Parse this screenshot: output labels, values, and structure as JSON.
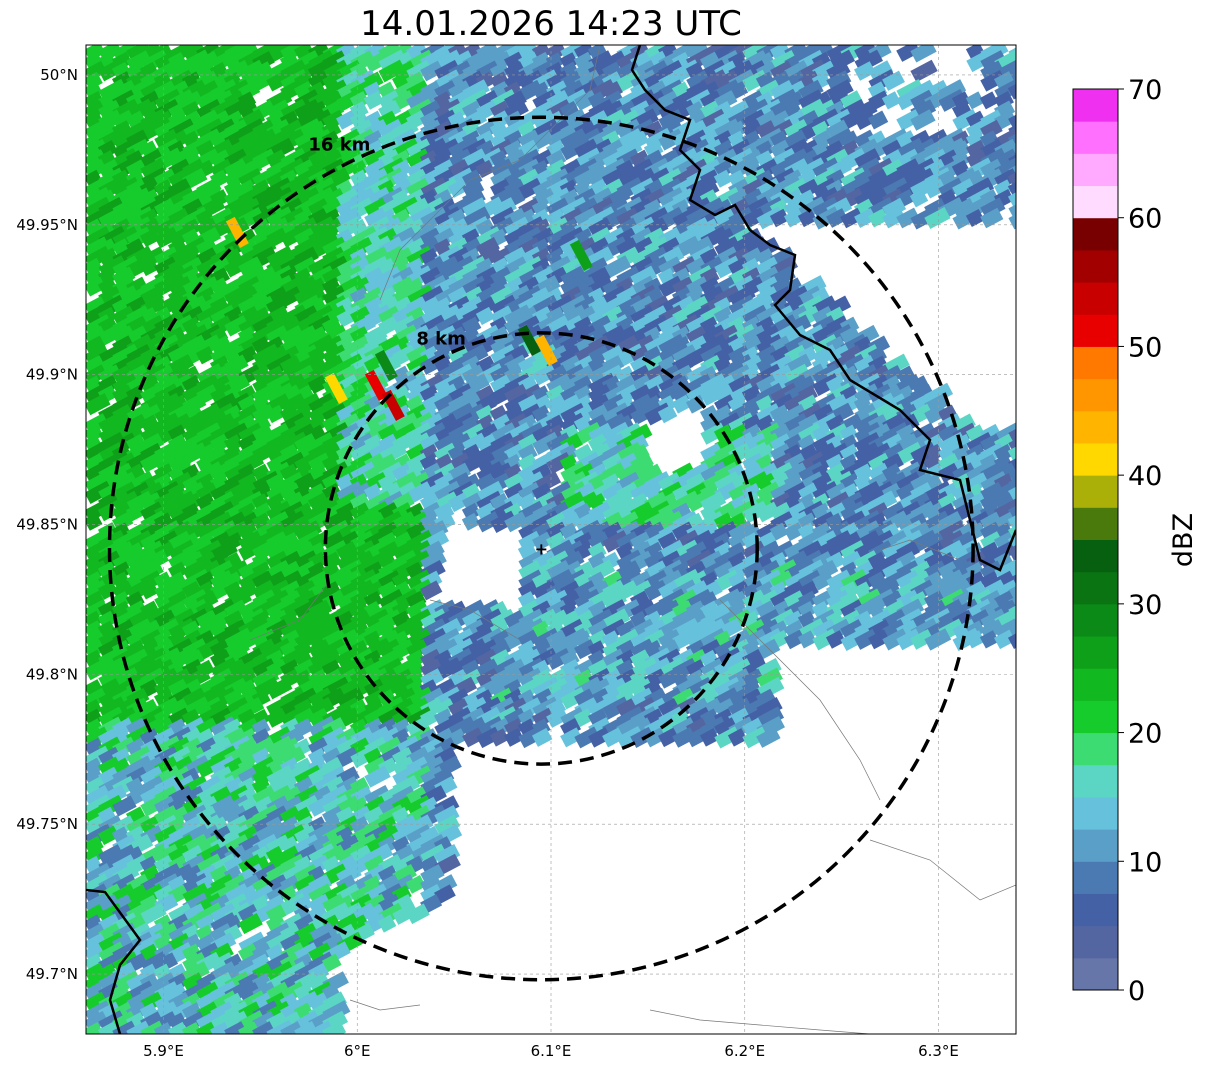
{
  "title": "14.01.2026 14:23 UTC",
  "map": {
    "projection": "lat-lon",
    "lon_range": [
      5.86,
      6.34
    ],
    "lat_range": [
      49.68,
      50.01
    ],
    "lat_ticks": [
      {
        "value": 50.0,
        "label": "50°N"
      },
      {
        "value": 49.95,
        "label": "49.95°N"
      },
      {
        "value": 49.9,
        "label": "49.9°N"
      },
      {
        "value": 49.85,
        "label": "49.85°N"
      },
      {
        "value": 49.8,
        "label": "49.8°N"
      },
      {
        "value": 49.75,
        "label": "49.75°N"
      },
      {
        "value": 49.7,
        "label": "49.7°N"
      }
    ],
    "lon_ticks": [
      {
        "value": 5.9,
        "label": "5.9°E"
      },
      {
        "value": 6.0,
        "label": "6°E"
      },
      {
        "value": 6.1,
        "label": "6.1°E"
      },
      {
        "value": 6.2,
        "label": "6.2°E"
      },
      {
        "value": 6.3,
        "label": "6.3°E"
      }
    ],
    "gridlines": true,
    "radar_site": {
      "lon": 6.095,
      "lat": 49.842
    },
    "range_rings": [
      {
        "radius_km": 8,
        "label": "8 km"
      },
      {
        "radius_km": 16,
        "label": "16 km"
      }
    ]
  },
  "colorbar": {
    "label": "dBZ",
    "min": 0,
    "max": 70,
    "ticks": [
      {
        "value": 0,
        "label": "0"
      },
      {
        "value": 10,
        "label": "10"
      },
      {
        "value": 20,
        "label": "20"
      },
      {
        "value": 30,
        "label": "30"
      },
      {
        "value": 40,
        "label": "40"
      },
      {
        "value": 50,
        "label": "50"
      },
      {
        "value": 60,
        "label": "60"
      },
      {
        "value": 70,
        "label": "70"
      }
    ],
    "colors": [
      "#6676a8",
      "#5366a2",
      "#4461a6",
      "#4b7ab2",
      "#5a9fc8",
      "#66c2dc",
      "#5cd6c4",
      "#3ddc72",
      "#16cc2c",
      "#12b820",
      "#0ea018",
      "#0c8a18",
      "#0a7412",
      "#066010",
      "#4a7a0c",
      "#aab008",
      "#ffd800",
      "#ffb400",
      "#ff9600",
      "#ff7800",
      "#e80000",
      "#c80000",
      "#a20000",
      "#780000",
      "#ffdcff",
      "#ffaaff",
      "#ff70ff",
      "#f030f0"
    ]
  }
}
